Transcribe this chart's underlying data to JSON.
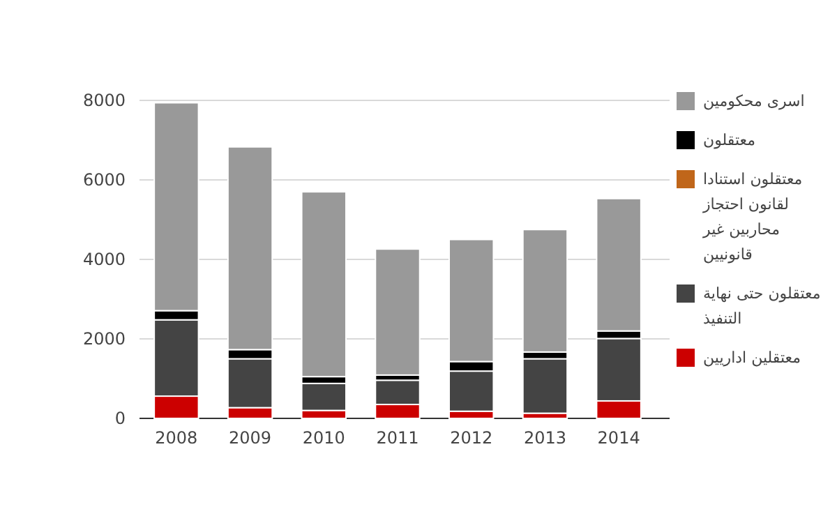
{
  "chart_data": {
    "type": "bar",
    "stacked": true,
    "categories": [
      "2008",
      "2009",
      "2010",
      "2011",
      "2012",
      "2013",
      "2014"
    ],
    "series": [
      {
        "name": "معتقلين اداريين",
        "color": "#cc0000",
        "values": [
          560,
          270,
          200,
          350,
          180,
          130,
          440
        ]
      },
      {
        "name": "معتقلون حتى نهاية التنفيذ",
        "color": "#444444",
        "values": [
          1920,
          1230,
          680,
          610,
          1010,
          1370,
          1570
        ]
      },
      {
        "name": "معتقلون استنادا لقانون احتجاز محاربين غير قانونيين",
        "color": "#c0661a",
        "values": [
          0,
          0,
          0,
          0,
          0,
          0,
          0
        ]
      },
      {
        "name": "معتقلون",
        "color": "#000000",
        "values": [
          230,
          230,
          170,
          130,
          240,
          170,
          190
        ]
      },
      {
        "name": "اسرى محكومين",
        "color": "#999999",
        "values": [
          5230,
          5100,
          4650,
          3170,
          3070,
          3080,
          3330
        ]
      }
    ],
    "ylim": [
      0,
      8000
    ],
    "yticks": [
      0,
      2000,
      4000,
      6000,
      8000
    ],
    "grid": "y",
    "legend": "right"
  }
}
